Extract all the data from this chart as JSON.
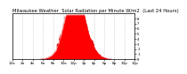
{
  "title": "Milwaukee Weather  Solar Radiation per Minute W/m2  (Last 24 Hours)",
  "title_fontsize": 3.8,
  "background_color": "#ffffff",
  "plot_bg_color": "#ffffff",
  "fill_color": "#ff0000",
  "line_color": "#dd0000",
  "grid_color": "#bbbbbb",
  "ylim": [
    0,
    900
  ],
  "num_points": 1440,
  "peak_hour": 12.5,
  "peak_value": 820,
  "peak_hour2": 11.0,
  "peak_value2": 700,
  "peak_hour3": 13.5,
  "peak_value3": 650,
  "sigma1": 2.2,
  "sigma2": 1.0,
  "sigma3": 0.8,
  "day_start": 5.5,
  "day_end": 19.5,
  "xlabel_fontsize": 3.0,
  "ylabel_fontsize": 3.0,
  "xtick_every": 2,
  "ytick_step": 100
}
